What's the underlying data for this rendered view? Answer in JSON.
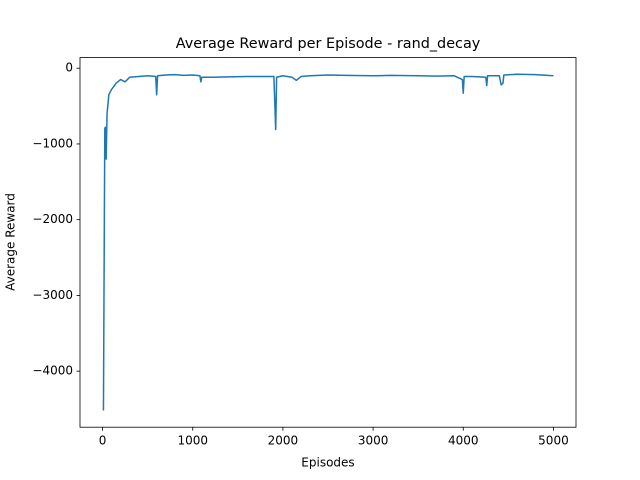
{
  "chart_data": {
    "type": "line",
    "title": "Average Reward per Episode - rand_decay",
    "x_label": "Episodes",
    "y_label": "Average Reward",
    "x": [
      10,
      20,
      25,
      30,
      40,
      50,
      70,
      100,
      150,
      200,
      250,
      300,
      400,
      500,
      590,
      600,
      610,
      700,
      800,
      900,
      1000,
      1080,
      1090,
      1100,
      1200,
      1400,
      1600,
      1800,
      1900,
      1920,
      1930,
      2000,
      2100,
      2150,
      2200,
      2300,
      2500,
      2700,
      3000,
      3200,
      3500,
      3700,
      3900,
      3990,
      4000,
      4010,
      4100,
      4250,
      4260,
      4270,
      4400,
      4420,
      4440,
      4450,
      4600,
      4800,
      5000
    ],
    "series": [
      {
        "name": "Average Reward",
        "color": "#1f77b4",
        "values": [
          -4520,
          -2000,
          -800,
          -780,
          -1200,
          -600,
          -350,
          -280,
          -200,
          -150,
          -180,
          -120,
          -110,
          -100,
          -110,
          -350,
          -100,
          -90,
          -85,
          -95,
          -90,
          -100,
          -180,
          -120,
          -120,
          -115,
          -110,
          -110,
          -110,
          -810,
          -120,
          -100,
          -120,
          -160,
          -110,
          -100,
          -90,
          -95,
          -100,
          -95,
          -100,
          -105,
          -100,
          -150,
          -330,
          -110,
          -110,
          -120,
          -230,
          -100,
          -100,
          -220,
          -200,
          -90,
          -80,
          -85,
          -100
        ]
      }
    ],
    "xlim": [
      -250,
      5250
    ],
    "ylim": [
      -4740,
      140
    ],
    "xticks": [
      0,
      1000,
      2000,
      3000,
      4000,
      5000
    ],
    "yticks": [
      {
        "value": -4000,
        "label": "−4000"
      },
      {
        "value": -3000,
        "label": "−3000"
      },
      {
        "value": -2000,
        "label": "−2000"
      },
      {
        "value": -1000,
        "label": "−1000"
      },
      0
    ]
  }
}
